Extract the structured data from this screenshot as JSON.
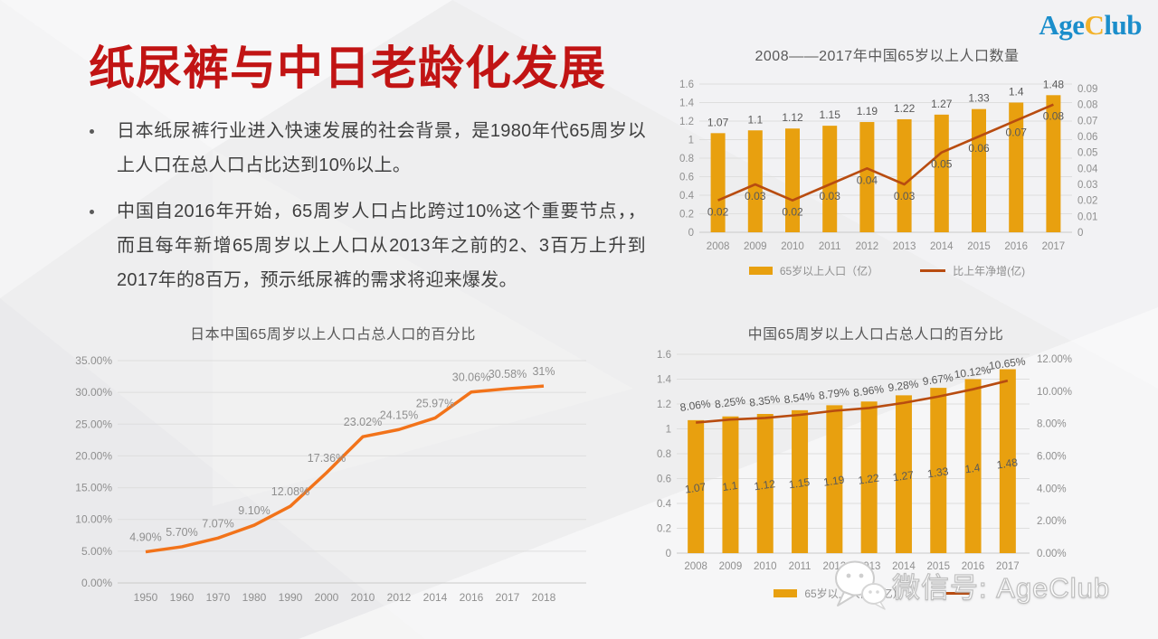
{
  "slide": {
    "title": "纸尿裤与中日老龄化发展",
    "bullets": [
      "日本纸尿裤行业进入快速发展的社会背景，是1980年代65周岁以上人口在总人口占比达到10%以上。",
      "中国自2016年开始，65周岁人口占比跨过10%这个重要节点，，而且每年新增65周岁以上人口从2013年之前的2、3百万上升到2017年的8百万，预示纸尿裤的需求将迎来爆发。"
    ]
  },
  "logo": {
    "parts": [
      "Age",
      "C",
      "lub"
    ]
  },
  "watermark": {
    "text": "微信号: AgeClub",
    "icon": "wechat-icon"
  },
  "colors": {
    "title_red": "#c11414",
    "bar_orange": "#e8a00f",
    "line_dark_orange": "#b84c10",
    "line_bright_orange": "#f2731a",
    "logo_blue": "#1b8ecb",
    "logo_accent": "#f3b229",
    "axis_gray": "#8f8f8f",
    "data_label_gray": "#595959"
  },
  "chart_data": [
    {
      "id": "china-65plus-population-count",
      "type": "combo-bar-line",
      "title": "2008——2017年中国65岁以上人口数量",
      "categories": [
        "2008",
        "2009",
        "2010",
        "2011",
        "2012",
        "2013",
        "2014",
        "2015",
        "2016",
        "2017"
      ],
      "series": [
        {
          "name": "65岁以上人口（亿）",
          "kind": "bar",
          "axis": "left",
          "values": [
            1.07,
            1.1,
            1.12,
            1.15,
            1.19,
            1.22,
            1.27,
            1.33,
            1.4,
            1.48
          ],
          "labels": [
            "1.07",
            "1.1",
            "1.12",
            "1.15",
            "1.19",
            "1.22",
            "1.27",
            "1.33",
            "1.4",
            "1.48"
          ]
        },
        {
          "name": "比上年净增(亿)",
          "kind": "line",
          "axis": "right",
          "values": [
            0.02,
            0.03,
            0.02,
            0.03,
            0.04,
            0.03,
            0.05,
            0.06,
            0.07,
            0.08
          ],
          "labels": [
            "0.02",
            "0.03",
            "0.02",
            "0.03",
            "0.04",
            "0.03",
            "0.05",
            "0.06",
            "0.07",
            "0.08"
          ]
        }
      ],
      "left_axis": {
        "min": 0,
        "max": 1.6,
        "ticks": [
          "1.6",
          "1.4",
          "1.2",
          "1",
          "0.8",
          "0.6",
          "0.4",
          "0.2",
          "0"
        ]
      },
      "right_axis": {
        "min": 0,
        "max": 0.09,
        "ticks": [
          "0.09",
          "0.08",
          "0.07",
          "0.06",
          "0.05",
          "0.04",
          "0.03",
          "0.02",
          "0.01",
          "0"
        ]
      },
      "grid": true,
      "legend_position": "bottom",
      "legend": [
        {
          "swatch": "bar",
          "label": "65岁以上人口（亿）"
        },
        {
          "swatch": "line",
          "label": "比上年净增(亿)"
        }
      ]
    },
    {
      "id": "japan-china-65plus-percentage",
      "type": "line",
      "title": "日本中国65周岁以上人口占总人口的百分比",
      "categories": [
        "1950",
        "1960",
        "1970",
        "1980",
        "1990",
        "2000",
        "2010",
        "2012",
        "2014",
        "2016",
        "2017",
        "2018"
      ],
      "series": [
        {
          "name": "65周岁以上人口占比",
          "kind": "line",
          "axis": "left",
          "values": [
            4.9,
            5.7,
            7.07,
            9.1,
            12.08,
            17.36,
            23.02,
            24.15,
            25.97,
            30.06,
            30.58,
            31
          ],
          "labels": [
            "4.90%",
            "5.70%",
            "7.07%",
            "9.10%",
            "12.08%",
            "17.36%",
            "23.02%",
            "24.15%",
            "25.97%",
            "30.06%",
            "30.58%",
            "31%"
          ]
        }
      ],
      "left_axis": {
        "min": 0,
        "max": 35,
        "ticks": [
          "35.00%",
          "30.00%",
          "25.00%",
          "20.00%",
          "15.00%",
          "10.00%",
          "5.00%",
          "0.00%"
        ]
      },
      "grid": true
    },
    {
      "id": "china-65plus-percentage",
      "type": "combo-bar-line",
      "title": "中国65周岁以上人口占总人口的百分比",
      "categories": [
        "2008",
        "2009",
        "2010",
        "2011",
        "2012",
        "2013",
        "2014",
        "2015",
        "2016",
        "2017"
      ],
      "series": [
        {
          "name": "65岁以上人口（亿）",
          "kind": "bar",
          "axis": "left",
          "values": [
            1.07,
            1.1,
            1.12,
            1.15,
            1.19,
            1.22,
            1.27,
            1.33,
            1.4,
            1.48
          ],
          "labels": [
            "1.07",
            "1.1",
            "1.12",
            "1.15",
            "1.19",
            "1.22",
            "1.27",
            "1.33",
            "1.4",
            "1.48"
          ]
        },
        {
          "name": "",
          "kind": "line",
          "axis": "right",
          "values": [
            8.06,
            8.25,
            8.35,
            8.54,
            8.79,
            8.96,
            9.28,
            9.67,
            10.12,
            10.65
          ],
          "labels": [
            "8.06%",
            "8.25%",
            "8.35%",
            "8.54%",
            "8.79%",
            "8.96%",
            "9.28%",
            "9.67%",
            "10.12%",
            "10.65%"
          ]
        }
      ],
      "left_axis": {
        "min": 0,
        "max": 1.6,
        "ticks": [
          "1.6",
          "1.4",
          "1.2",
          "1",
          "0.8",
          "0.6",
          "0.4",
          "0.2",
          "0"
        ]
      },
      "right_axis": {
        "min": 0,
        "max": 12,
        "ticks": [
          "12.00%",
          "10.00%",
          "8.00%",
          "6.00%",
          "4.00%",
          "2.00%",
          "0.00%"
        ]
      },
      "grid": true,
      "legend_position": "bottom",
      "legend": [
        {
          "swatch": "bar",
          "label": "65岁以上人口（亿）"
        },
        {
          "swatch": "line",
          "label": ""
        }
      ]
    }
  ]
}
